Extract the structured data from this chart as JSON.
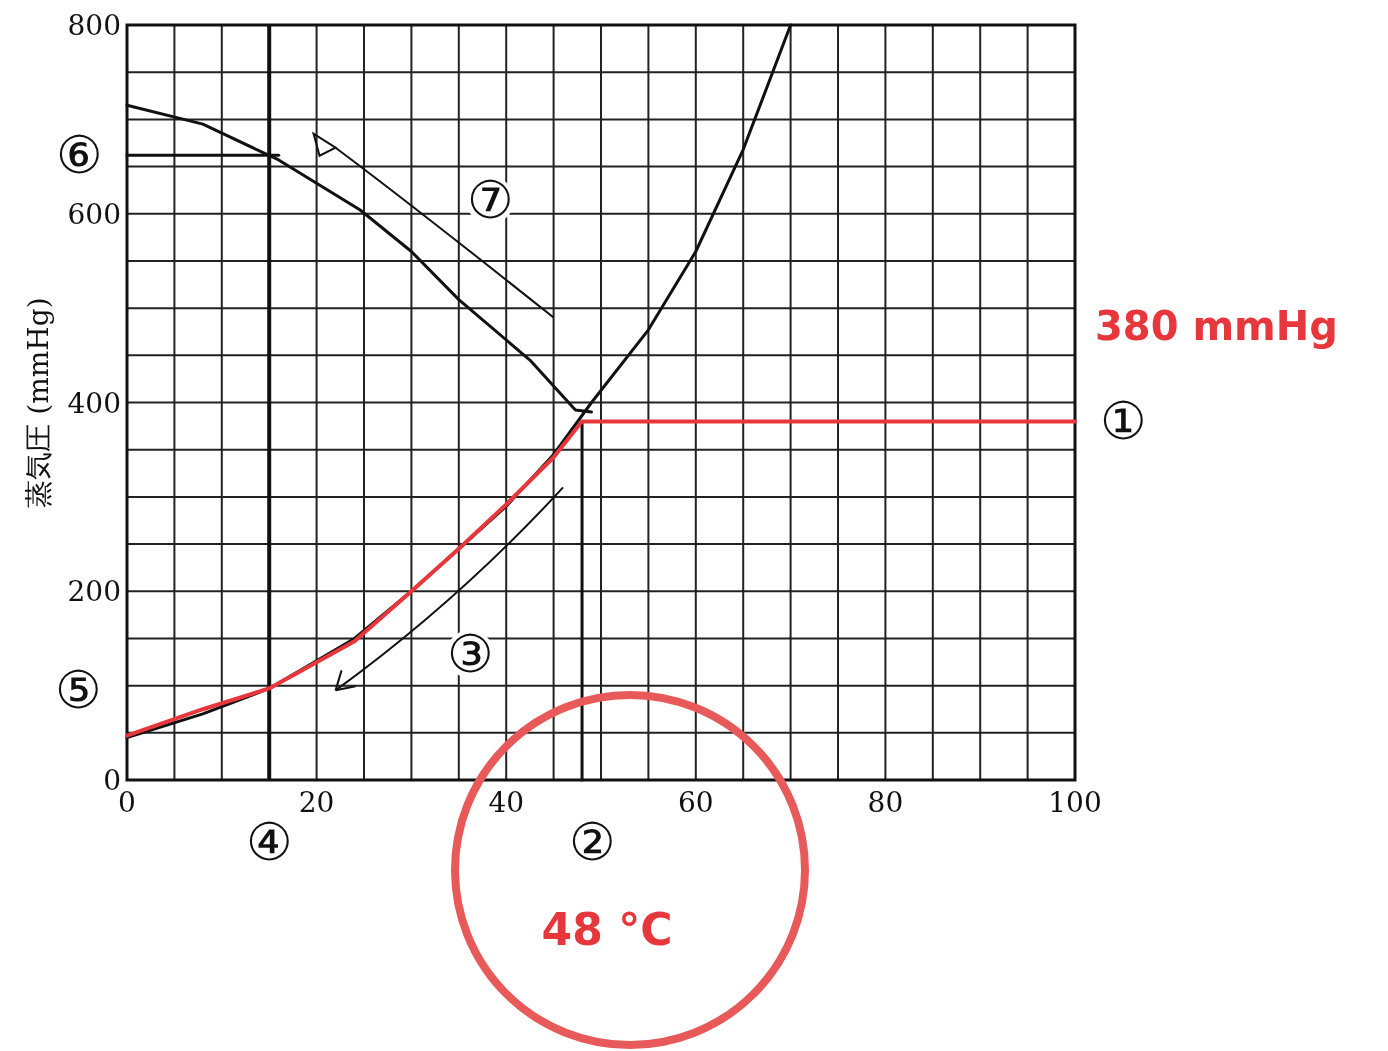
{
  "chart_data": {
    "type": "line",
    "ylabel": "蒸気圧 (mmHg)",
    "xlim": [
      0,
      100
    ],
    "ylim": [
      0,
      800
    ],
    "xticks": [
      0,
      {
        "value": 5,
        "label": null
      },
      {
        "value": 10,
        "label": null
      },
      {
        "value": 15,
        "label": null
      },
      20,
      {
        "value": 25,
        "label": null
      },
      {
        "value": 30,
        "label": null
      },
      {
        "value": 35,
        "label": null
      },
      40,
      {
        "value": 45,
        "label": null
      },
      {
        "value": 50,
        "label": null
      },
      {
        "value": 55,
        "label": null
      },
      60,
      {
        "value": 65,
        "label": null
      },
      {
        "value": 70,
        "label": null
      },
      {
        "value": 75,
        "label": null
      },
      80,
      {
        "value": 85,
        "label": null
      },
      {
        "value": 90,
        "label": null
      },
      {
        "value": 95,
        "label": null
      },
      100
    ],
    "yticks": [
      0,
      {
        "value": 50,
        "label": null
      },
      {
        "value": 100,
        "label": null
      },
      {
        "value": 150,
        "label": null
      },
      200,
      {
        "value": 250,
        "label": null
      },
      {
        "value": 300,
        "label": null
      },
      {
        "value": 350,
        "label": null
      },
      400,
      {
        "value": 450,
        "label": null
      },
      {
        "value": 500,
        "label": null
      },
      {
        "value": 550,
        "label": null
      },
      600,
      {
        "value": 650,
        "label": null
      },
      {
        "value": 700,
        "label": null
      },
      {
        "value": 750,
        "label": null
      },
      800
    ],
    "grid": true,
    "series": [
      {
        "color": "#111111",
        "x": [
          0,
          8,
          15,
          24,
          30,
          35,
          40,
          45,
          49,
          55,
          60,
          65,
          70
        ],
        "values": [
          45,
          70,
          97,
          150,
          200,
          245,
          290,
          345,
          400,
          477,
          560,
          668,
          800
        ]
      },
      {
        "color": "#111111",
        "x": [
          0,
          8,
          16,
          24.6,
          30,
          35,
          42.5,
          47.3,
          49
        ],
        "values": [
          715,
          695,
          657,
          604,
          560,
          509,
          445,
          392,
          390
        ]
      },
      {
        "color": "#111111",
        "x": [
          0,
          16
        ],
        "values": [
          662,
          662
        ]
      },
      {
        "color": "#111111",
        "x": [
          48,
          48
        ],
        "values": [
          0,
          380
        ]
      },
      {
        "color": "#e8373c",
        "x": [
          0,
          8,
          15,
          24,
          30,
          35,
          40,
          45,
          48,
          100
        ],
        "values": [
          47,
          75,
          97,
          147,
          200,
          245,
          292,
          342,
          380,
          380
        ]
      }
    ],
    "ref_lines": [
      {
        "axis": "x",
        "value": 15,
        "color": "#111111"
      }
    ],
    "annotations": [
      {
        "text": "①",
        "x": 100,
        "y": 380
      },
      "380 mmHg",
      "②",
      {
        "text": "48 °C",
        "x": 48,
        "y": 0
      },
      "③",
      {
        "text": "④",
        "x": 15,
        "y": 0
      },
      "⑤",
      {
        "text": "⑥",
        "x": 0,
        "y": 662
      },
      "⑦"
    ]
  }
}
